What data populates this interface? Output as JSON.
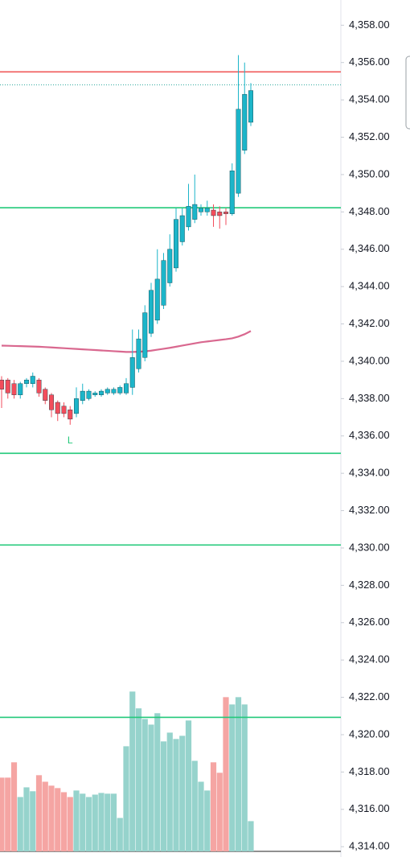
{
  "chart_data": {
    "type": "candlestick",
    "categories": [
      null,
      null,
      null,
      null,
      null,
      null,
      null,
      null,
      null,
      null,
      null,
      null,
      null,
      null,
      null,
      null,
      null,
      null,
      null,
      null,
      null,
      null,
      null,
      null,
      null,
      null,
      null,
      null,
      null,
      null,
      null,
      null,
      null,
      null,
      null,
      null,
      null,
      null,
      null,
      null,
      null
    ],
    "open": [
      4339.0,
      4339.0,
      4338.8,
      4338.2,
      4338.8,
      4338.8,
      4339.0,
      4338.5,
      4338.2,
      4337.8,
      4337.6,
      4337.4,
      4337.2,
      4337.9,
      4338.0,
      4338.2,
      4338.2,
      4338.3,
      4338.3,
      4338.3,
      4338.3,
      4338.6,
      4339.6,
      4340.2,
      4341.5,
      4342.2,
      4343.0,
      4344.2,
      4345.0,
      4346.4,
      4347.2,
      4347.6,
      4348.0,
      4348.0,
      4348.1,
      4348.0,
      4348.0,
      4347.9,
      4349.0,
      4351.3,
      4352.8
    ],
    "high": [
      4339.2,
      4339.1,
      4339.0,
      4338.9,
      4339.1,
      4339.4,
      4339.1,
      4338.6,
      4338.3,
      4337.9,
      4337.8,
      4337.6,
      4338.6,
      4338.8,
      4338.5,
      4338.4,
      4338.5,
      4338.6,
      4338.6,
      4338.7,
      4339.1,
      4341.7,
      4341.7,
      4343.0,
      4344.2,
      4346.0,
      4345.8,
      4346.8,
      4348.2,
      4348.2,
      4349.5,
      4350.0,
      4348.4,
      4348.6,
      4348.4,
      4348.3,
      4348.2,
      4350.6,
      4356.4,
      4356.0,
      4354.9
    ],
    "low": [
      4337.5,
      4338.0,
      4338.0,
      4338.0,
      4338.6,
      4338.6,
      4338.1,
      4337.7,
      4337.0,
      4336.8,
      4337.0,
      4336.6,
      4337.0,
      4337.7,
      4337.9,
      4338.1,
      4338.1,
      4338.2,
      4338.2,
      4338.2,
      4338.2,
      4338.2,
      4339.4,
      4340.0,
      4341.3,
      4342.0,
      4342.8,
      4344.0,
      4344.8,
      4346.2,
      4347.0,
      4347.4,
      4347.8,
      4347.8,
      4347.2,
      4347.1,
      4347.3,
      4347.8,
      4348.8,
      4351.1,
      4352.6
    ],
    "close": [
      4338.5,
      4338.3,
      4338.2,
      4338.8,
      4339.0,
      4339.2,
      4338.3,
      4337.9,
      4337.4,
      4337.2,
      4337.2,
      4336.9,
      4338.0,
      4338.4,
      4338.4,
      4338.3,
      4338.4,
      4338.5,
      4338.5,
      4338.6,
      4338.8,
      4340.2,
      4341.2,
      4342.6,
      4343.8,
      4344.4,
      4345.4,
      4346.0,
      4347.6,
      4347.8,
      4348.3,
      4348.4,
      4348.2,
      4348.2,
      4347.8,
      4347.8,
      4347.9,
      4350.2,
      4353.5,
      4354.3,
      4354.5
    ],
    "volume": [
      4317.7,
      4317.7,
      4318.52,
      4316.66,
      4317.18,
      4316.97,
      4317.83,
      4317.48,
      4317.27,
      4317.14,
      4316.92,
      4316.66,
      4317.01,
      4316.84,
      4316.66,
      4316.79,
      4316.88,
      4316.84,
      4316.84,
      4315.54,
      4319.38,
      4322.31,
      4321.41,
      4320.84,
      4320.54,
      4321.15,
      4319.64,
      4320.11,
      4319.77,
      4319.94,
      4320.76,
      4318.6,
      4317.48,
      4317.01,
      4318.52,
      4317.96,
      4322.01,
      4321.62,
      4322.01,
      4321.62,
      4315.37
    ],
    "up_color": "#1cb5c9",
    "down_color": "#f24d5c",
    "volume_up_color": "#96d3cc",
    "volume_down_color": "#f5a5a3",
    "ma": {
      "color": "#d9688f",
      "values": [
        4340.84,
        4340.83,
        4340.82,
        4340.81,
        4340.8,
        4340.79,
        4340.78,
        4340.76,
        4340.74,
        4340.72,
        4340.7,
        4340.68,
        4340.66,
        4340.64,
        4340.62,
        4340.6,
        4340.58,
        4340.56,
        4340.54,
        4340.52,
        4340.5,
        4340.5,
        4340.51,
        4340.53,
        4340.57,
        4340.62,
        4340.67,
        4340.72,
        4340.78,
        4340.84,
        4340.9,
        4340.96,
        4341.02,
        4341.06,
        4341.1,
        4341.14,
        4341.18,
        4341.23,
        4341.32,
        4341.45,
        4341.62
      ]
    },
    "hlines": [
      {
        "value": 4355.5,
        "color": "#f05a5a",
        "style": "solid"
      },
      {
        "value": 4354.81,
        "color": "#26a69a",
        "style": "dotted"
      },
      {
        "value": 4348.22,
        "color": "#22c97a",
        "style": "solid"
      },
      {
        "value": 4335.07,
        "color": "#22c97a",
        "style": "solid"
      },
      {
        "value": 4330.16,
        "color": "#22c97a",
        "style": "solid"
      },
      {
        "value": 4320.93,
        "color": "#22c97a",
        "style": "solid"
      }
    ],
    "annotations": [
      {
        "text": "L",
        "index": 11,
        "value": 4336.0,
        "color": "#22c97a"
      }
    ],
    "ylim": [
      4313.75,
      4359.35
    ],
    "yticks": [
      {
        "value": 4314,
        "label": "4,314.00"
      },
      {
        "value": 4316,
        "label": "4,316.00"
      },
      {
        "value": 4318,
        "label": "4,318.00"
      },
      {
        "value": 4320,
        "label": "4,320.00"
      },
      {
        "value": 4322,
        "label": "4,322.00"
      },
      {
        "value": 4324,
        "label": "4,324.00"
      },
      {
        "value": 4326,
        "label": "4,326.00"
      },
      {
        "value": 4328,
        "label": "4,328.00"
      },
      {
        "value": 4330,
        "label": "4,330.00"
      },
      {
        "value": 4332,
        "label": "4,332.00"
      },
      {
        "value": 4334,
        "label": "4,334.00"
      },
      {
        "value": 4336,
        "label": "4,336.00"
      },
      {
        "value": 4338,
        "label": "4,338.00"
      },
      {
        "value": 4340,
        "label": "4,340.00"
      },
      {
        "value": 4342,
        "label": "4,342.00"
      },
      {
        "value": 4344,
        "label": "4,344.00"
      },
      {
        "value": 4346,
        "label": "4,346.00"
      },
      {
        "value": 4348,
        "label": "4,348.00"
      },
      {
        "value": 4350,
        "label": "4,350.00"
      },
      {
        "value": 4352,
        "label": "4,352.00"
      },
      {
        "value": 4354,
        "label": "4,354.00"
      },
      {
        "value": 4356,
        "label": "4,356.00"
      },
      {
        "value": 4358,
        "label": "4,358.00"
      }
    ]
  }
}
